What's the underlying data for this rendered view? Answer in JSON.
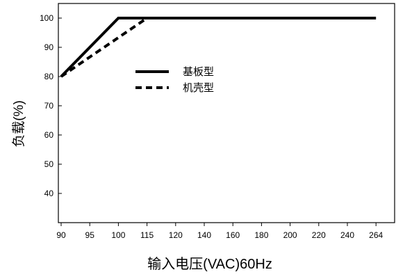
{
  "chart_data": {
    "type": "line",
    "xlabel": "输入电压(VAC)60Hz",
    "ylabel": "负载(%)",
    "categories": [
      "90",
      "95",
      "100",
      "115",
      "120",
      "140",
      "160",
      "180",
      "200",
      "220",
      "240",
      "264"
    ],
    "yticks": [
      40,
      50,
      60,
      70,
      80,
      90,
      100
    ],
    "ylim": [
      30,
      105
    ],
    "grid": false,
    "legend_position": "upper-left-inside",
    "series": [
      {
        "name": "基板型",
        "style": "solid",
        "color": "#000000",
        "points": [
          [
            "90",
            80
          ],
          [
            "100",
            100
          ],
          [
            "264",
            100
          ]
        ]
      },
      {
        "name": "机壳型",
        "style": "dashed",
        "color": "#000000",
        "points": [
          [
            "90",
            80
          ],
          [
            "115",
            100
          ],
          [
            "264",
            100
          ]
        ]
      }
    ]
  }
}
